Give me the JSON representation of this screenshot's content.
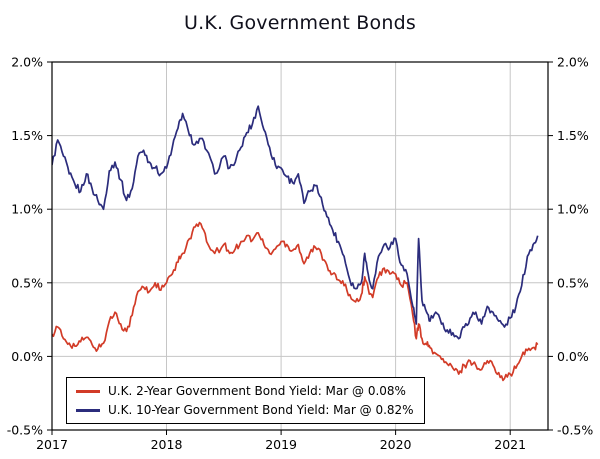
{
  "chart_data": {
    "type": "line",
    "title": "U.K. Government Bonds",
    "x_label": "",
    "y_label": "",
    "x_range": [
      2017,
      2021.33
    ],
    "y_range": [
      -0.5,
      2.0
    ],
    "y_unit": "%",
    "grid": true,
    "grid_y": [
      1.5,
      1.0,
      0.5,
      0.0
    ],
    "grid_x": [
      2018,
      2019,
      2020,
      2021
    ],
    "y_ticks": [
      {
        "v": 2.0,
        "label": "2.0%"
      },
      {
        "v": 1.5,
        "label": "1.5%"
      },
      {
        "v": 1.0,
        "label": "1.0%"
      },
      {
        "v": 0.5,
        "label": "0.5%"
      },
      {
        "v": 0.0,
        "label": "0.0%"
      },
      {
        "v": -0.5,
        "label": "-0.5%"
      }
    ],
    "x_ticks": [
      {
        "v": 2017,
        "label": "2017"
      },
      {
        "v": 2018,
        "label": "2018"
      },
      {
        "v": 2019,
        "label": "2019"
      },
      {
        "v": 2020,
        "label": "2020"
      },
      {
        "v": 2021,
        "label": "2021"
      }
    ],
    "legend_position": "bottom-left-inside",
    "x": [
      2017.0,
      2017.05,
      2017.1,
      2017.15,
      2017.2,
      2017.25,
      2017.3,
      2017.35,
      2017.4,
      2017.45,
      2017.5,
      2017.55,
      2017.6,
      2017.65,
      2017.7,
      2017.75,
      2017.8,
      2017.85,
      2017.9,
      2017.95,
      2018.0,
      2018.05,
      2018.1,
      2018.14,
      2018.2,
      2018.25,
      2018.3,
      2018.35,
      2018.42,
      2018.5,
      2018.55,
      2018.6,
      2018.65,
      2018.7,
      2018.75,
      2018.8,
      2018.85,
      2018.9,
      2018.95,
      2019.0,
      2019.05,
      2019.1,
      2019.15,
      2019.2,
      2019.25,
      2019.3,
      2019.35,
      2019.4,
      2019.45,
      2019.5,
      2019.55,
      2019.6,
      2019.65,
      2019.7,
      2019.73,
      2019.76,
      2019.8,
      2019.85,
      2019.9,
      2019.95,
      2020.0,
      2020.05,
      2020.1,
      2020.15,
      2020.18,
      2020.2,
      2020.23,
      2020.27,
      2020.3,
      2020.35,
      2020.4,
      2020.45,
      2020.5,
      2020.55,
      2020.6,
      2020.65,
      2020.7,
      2020.75,
      2020.8,
      2020.85,
      2020.9,
      2020.95,
      2021.0,
      2021.05,
      2021.1,
      2021.15,
      2021.2,
      2021.24
    ],
    "series": [
      {
        "id": "uk-2-year",
        "name": "U.K. 2-Year Government Bond Yield",
        "legend_label": "U.K. 2-Year Government Bond Yield: Mar @ 0.08%",
        "latest_month": "Mar",
        "latest_value": 0.08,
        "color": "#d23b27",
        "y": [
          0.15,
          0.2,
          0.12,
          0.09,
          0.07,
          0.1,
          0.13,
          0.08,
          0.05,
          0.09,
          0.24,
          0.3,
          0.22,
          0.17,
          0.28,
          0.44,
          0.47,
          0.44,
          0.5,
          0.45,
          0.5,
          0.56,
          0.64,
          0.7,
          0.8,
          0.88,
          0.9,
          0.78,
          0.7,
          0.76,
          0.7,
          0.73,
          0.78,
          0.82,
          0.79,
          0.84,
          0.76,
          0.7,
          0.73,
          0.78,
          0.76,
          0.72,
          0.76,
          0.63,
          0.7,
          0.74,
          0.7,
          0.62,
          0.56,
          0.52,
          0.48,
          0.42,
          0.37,
          0.42,
          0.54,
          0.46,
          0.4,
          0.54,
          0.6,
          0.56,
          0.56,
          0.48,
          0.5,
          0.28,
          0.12,
          0.22,
          0.12,
          0.08,
          0.06,
          0.02,
          -0.02,
          -0.05,
          -0.08,
          -0.12,
          -0.06,
          -0.03,
          -0.06,
          -0.09,
          -0.03,
          -0.06,
          -0.11,
          -0.15,
          -0.12,
          -0.08,
          0.0,
          0.04,
          0.06,
          0.08
        ]
      },
      {
        "id": "uk-10-year",
        "name": "U.K. 10-Year Government Bond Yield",
        "legend_label": "U.K. 10-Year Government Bond Yield: Mar @ 0.82%",
        "latest_month": "Mar",
        "latest_value": 0.82,
        "color": "#2b2c7c",
        "y": [
          1.3,
          1.47,
          1.36,
          1.24,
          1.17,
          1.12,
          1.24,
          1.14,
          1.06,
          1.0,
          1.26,
          1.32,
          1.2,
          1.06,
          1.14,
          1.36,
          1.4,
          1.32,
          1.28,
          1.24,
          1.28,
          1.42,
          1.55,
          1.65,
          1.5,
          1.44,
          1.48,
          1.4,
          1.24,
          1.36,
          1.28,
          1.32,
          1.42,
          1.52,
          1.58,
          1.7,
          1.54,
          1.42,
          1.3,
          1.28,
          1.22,
          1.18,
          1.24,
          1.04,
          1.12,
          1.16,
          1.08,
          0.95,
          0.86,
          0.78,
          0.68,
          0.52,
          0.46,
          0.5,
          0.7,
          0.56,
          0.46,
          0.68,
          0.76,
          0.74,
          0.8,
          0.62,
          0.56,
          0.34,
          0.22,
          0.8,
          0.38,
          0.3,
          0.24,
          0.3,
          0.22,
          0.18,
          0.16,
          0.12,
          0.2,
          0.26,
          0.3,
          0.22,
          0.34,
          0.3,
          0.24,
          0.2,
          0.26,
          0.34,
          0.48,
          0.68,
          0.76,
          0.82
        ]
      }
    ],
    "style": {
      "grid_color": "#c6c6c6",
      "axis_color": "#000000",
      "background": "#ffffff",
      "line_width": 1.7,
      "jitter": 0.025
    }
  }
}
